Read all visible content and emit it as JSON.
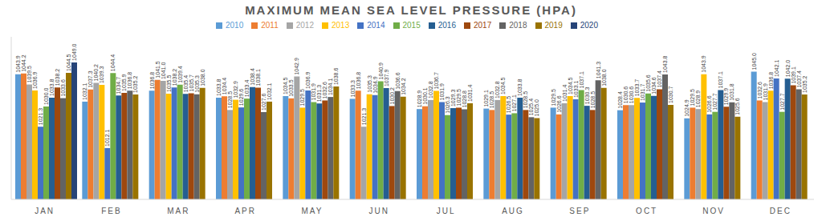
{
  "chart_data": {
    "type": "bar",
    "title": "MAXIMUM MEAN SEA LEVEL PRESSURE (HPA)",
    "categories": [
      "JAN",
      "FEB",
      "MAR",
      "APR",
      "MAY",
      "JUN",
      "JUL",
      "AUG",
      "SEP",
      "OCT",
      "NOV",
      "DEC"
    ],
    "series": [
      {
        "name": "2010",
        "color": "#5B9BD5",
        "values": [
          1043.9,
          1032.1,
          1036.8,
          1033.8,
          1034.5,
          1033.3,
          1028.9,
          1029.1,
          1029.5,
          1028.4,
          1024.9,
          1045.0
        ],
        "value_labels": [
          "1043.9",
          "1032.1",
          "1036.8",
          "1033.8",
          "1034.5",
          "1033.3",
          "1028.9",
          "1029.1",
          "1029.5",
          "1028.4",
          "1024.9",
          "1045.0"
        ]
      },
      {
        "name": "2011",
        "color": "#ED7D31",
        "values": [
          1044.2,
          1037.3,
          1041.5,
          1034.4,
          1033.5,
          1036.8,
          1030.1,
          1028.5,
          1026.6,
          1030.6,
          1029.5,
          1032.6
        ],
        "value_labels": [
          "1044.2",
          "1037.3",
          "1041.5",
          "1034.4",
          "1033.5",
          "1036.8",
          "1030.1",
          "1028.5",
          "1026.6",
          "1030.6",
          "1029.5",
          "1032.6"
        ]
      },
      {
        "name": "2012",
        "color": "#A5A5A5",
        "values": [
          1039.5,
          1040.2,
          1041.0,
          1028.5,
          1042.9,
          1021.3,
          1032.8,
          1032.8,
          1031.4,
          1030.6,
          1028.9,
          1031.9
        ],
        "value_labels": [
          "1039.5",
          "1040.2",
          "1041.0",
          "1028.5",
          "1042.9",
          "1021.3",
          "1032.8",
          "1032.8",
          "1031.4",
          "1030.6",
          "1028.9",
          "1031.9"
        ]
      },
      {
        "name": "2013",
        "color": "#FFC000",
        "values": [
          1036.9,
          1039.3,
          1035.5,
          1032.9,
          1029.5,
          1035.3,
          1036.7,
          1034.5,
          1034.5,
          1033.7,
          1043.9,
          1036.8
        ],
        "value_labels": [
          "1036.9",
          "1039.3",
          "1035.5",
          "1032.9",
          "1029.5",
          "1035.3",
          "1036.7",
          "1034.5",
          "1034.5",
          "1033.7",
          "1043.9",
          "1036.8"
        ]
      },
      {
        "name": "2014",
        "color": "#4472C4",
        "values": [
          1021.3,
          1012.1,
          1038.2,
          1029.6,
          1036.9,
          1034.9,
          1031.9,
          1026.5,
          1033.1,
          1031.7,
          1026.6,
          1042.1
        ],
        "value_labels": [
          "1021.3",
          "1012.1",
          "1038.2",
          "1029.6",
          "1036.9",
          "1034.9",
          "1031.9",
          "1026.5",
          "1033.1",
          "1031.7",
          "1026.6",
          "1042.1"
        ]
      },
      {
        "name": "2015",
        "color": "#70AD47",
        "values": [
          1030.0,
          1044.4,
          1039.4,
          1033.4,
          1031.9,
          1040.9,
          1026.3,
          1027.1,
          1037.1,
          1035.6,
          1027.7,
          1027.7
        ],
        "value_labels": [
          "1030.0",
          "1044.4",
          "1039.4",
          "1033.4",
          "1031.9",
          "1040.9",
          "1026.3",
          "1027.1",
          "1037.1",
          "1035.6",
          "1027.7",
          "1027.7"
        ]
      },
      {
        "name": "2016",
        "color": "#255E91",
        "values": [
          1033.8,
          1034.7,
          1035.4,
          1038.4,
          1031.3,
          1037.9,
          1029.3,
          1033.8,
          1030.3,
          1034.6,
          1037.1,
          1042.0
        ],
        "value_labels": [
          "1033.8",
          "1034.7",
          "1035.4",
          "1038.4",
          "1031.3",
          "1037.9",
          "1029.3",
          "1033.8",
          "1030.3",
          "1034.6",
          "1037.1",
          "1042.0"
        ]
      },
      {
        "name": "2017",
        "color": "#9E480E",
        "values": [
          1038.2,
          1035.9,
          1035.7,
          1038.1,
          1032.6,
          1030.2,
          1029.5,
          1028.5,
          1028.5,
          1037.4,
          1029.9,
          1039.1
        ],
        "value_labels": [
          "1038.2",
          "1035.9",
          "1035.7",
          "1038.1",
          "1032.6",
          "1030.2",
          "1029.5",
          "1028.5",
          "1028.5",
          "1037.4",
          "1029.9",
          "1039.1"
        ]
      },
      {
        "name": "2018",
        "color": "#636363",
        "values": [
          1033.6,
          1036.8,
          1035.3,
          1027.6,
          1034.1,
          1036.6,
          1028.8,
          1025.4,
          1041.3,
          1043.8,
          1031.8,
          1037.4
        ],
        "value_labels": [
          "1033.6",
          "1036.8",
          "1035.3",
          "1027.6",
          "1034.1",
          "1036.6",
          "1028.8",
          "1025.4",
          "1041.3",
          "1043.8",
          "1031.8",
          "1037.4"
        ]
      },
      {
        "name": "2019",
        "color": "#997300",
        "values": [
          1044.5,
          1035.2,
          1038.0,
          1032.1,
          1038.6,
          1034.2,
          1031.4,
          1025.0,
          1038.0,
          1030.7,
          1025.6,
          1035.2
        ],
        "value_labels": [
          "1044.5",
          "1035.2",
          "1038.0",
          "1032.1",
          "1038.6",
          "1034.2",
          "1031.4",
          "1025.0",
          "1038.0",
          "1030.7",
          "1025.6",
          "1035.2"
        ]
      },
      {
        "name": "2020",
        "color": "#264478",
        "values": [
          1049.0,
          null,
          null,
          null,
          null,
          null,
          null,
          null,
          null,
          null,
          null,
          null
        ],
        "value_labels": [
          "1049.0",
          null,
          null,
          null,
          null,
          null,
          null,
          null,
          null,
          null,
          null,
          null
        ]
      }
    ],
    "ylim": [
      990,
      1060
    ],
    "data_labels": true,
    "tick_labels": "x",
    "legend": "top",
    "grid": false
  }
}
